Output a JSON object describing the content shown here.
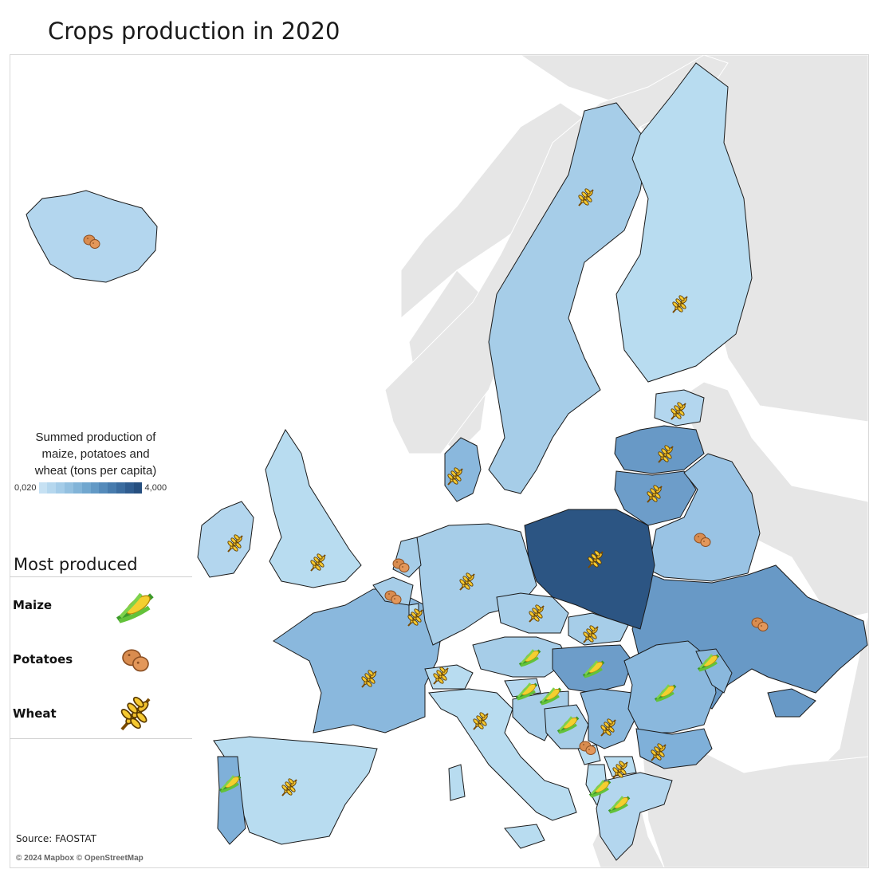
{
  "title": "Crops production in 2020",
  "legend": {
    "title_line1": "Summed production of",
    "title_line2": "maize, potatoes and",
    "title_line3": "wheat (tons per capita)",
    "min_label": "0,020",
    "max_label": "4,000",
    "ramp": [
      "#c6e1f3",
      "#b5d7ee",
      "#a4cce8",
      "#93c0e0",
      "#82b4d8",
      "#71a7cf",
      "#6299c5",
      "#548aba",
      "#477bad",
      "#3b6c9f",
      "#2f5c8f",
      "#264f7f"
    ]
  },
  "most_produced": {
    "heading": "Most produced",
    "items": [
      {
        "label": "Maize",
        "icon": "maize-icon"
      },
      {
        "label": "Potatoes",
        "icon": "potato-icon"
      },
      {
        "label": "Wheat",
        "icon": "wheat-icon"
      }
    ]
  },
  "source": "Source: FAOSTAT",
  "attribution": "© 2024 Mapbox © OpenStreetMap",
  "colors": {
    "background_land": "#e6e6e6",
    "outline": "#1a1a1a",
    "low": "#c6e1f3",
    "mid": "#93c0e0",
    "high": "#2c5583"
  },
  "countries": [
    {
      "name": "Iceland",
      "crop": "potatoes",
      "level": "low"
    },
    {
      "name": "Norway",
      "crop": "none",
      "level": "none"
    },
    {
      "name": "Sweden",
      "crop": "wheat",
      "level": "low-mid"
    },
    {
      "name": "Finland",
      "crop": "wheat",
      "level": "low"
    },
    {
      "name": "Estonia",
      "crop": "wheat",
      "level": "low"
    },
    {
      "name": "Latvia",
      "crop": "wheat",
      "level": "mid-high"
    },
    {
      "name": "Lithuania",
      "crop": "wheat",
      "level": "mid-high"
    },
    {
      "name": "Belarus",
      "crop": "potatoes",
      "level": "low-mid"
    },
    {
      "name": "Ukraine",
      "crop": "potatoes",
      "level": "mid-high"
    },
    {
      "name": "Poland",
      "crop": "wheat",
      "level": "high"
    },
    {
      "name": "Denmark",
      "crop": "wheat",
      "level": "mid"
    },
    {
      "name": "United Kingdom",
      "crop": "wheat",
      "level": "low"
    },
    {
      "name": "Ireland",
      "crop": "wheat",
      "level": "low"
    },
    {
      "name": "France",
      "crop": "wheat",
      "level": "mid"
    },
    {
      "name": "Spain",
      "crop": "wheat",
      "level": "low"
    },
    {
      "name": "Portugal",
      "crop": "maize",
      "level": "mid"
    },
    {
      "name": "Germany",
      "crop": "wheat",
      "level": "low-mid"
    },
    {
      "name": "Netherlands",
      "crop": "potatoes",
      "level": "low-mid"
    },
    {
      "name": "Belgium",
      "crop": "potatoes",
      "level": "low-mid"
    },
    {
      "name": "Luxembourg",
      "crop": "wheat",
      "level": "low"
    },
    {
      "name": "Switzerland",
      "crop": "wheat",
      "level": "low"
    },
    {
      "name": "Italy",
      "crop": "wheat",
      "level": "low"
    },
    {
      "name": "Austria",
      "crop": "maize",
      "level": "low-mid"
    },
    {
      "name": "Czechia",
      "crop": "wheat",
      "level": "low-mid"
    },
    {
      "name": "Slovakia",
      "crop": "wheat",
      "level": "low-mid"
    },
    {
      "name": "Hungary",
      "crop": "maize",
      "level": "mid-high"
    },
    {
      "name": "Slovenia",
      "crop": "maize",
      "level": "low"
    },
    {
      "name": "Croatia",
      "crop": "maize",
      "level": "low-mid"
    },
    {
      "name": "Bosnia and Herzegovina",
      "crop": "maize",
      "level": "low-mid"
    },
    {
      "name": "Serbia",
      "crop": "wheat",
      "level": "mid"
    },
    {
      "name": "Romania",
      "crop": "maize",
      "level": "mid"
    },
    {
      "name": "Moldova",
      "crop": "maize",
      "level": "mid"
    },
    {
      "name": "Bulgaria",
      "crop": "wheat",
      "level": "mid-high"
    },
    {
      "name": "Montenegro",
      "crop": "potatoes",
      "level": "low"
    },
    {
      "name": "North Macedonia",
      "crop": "wheat",
      "level": "low"
    },
    {
      "name": "Albania",
      "crop": "maize",
      "level": "low"
    },
    {
      "name": "Greece",
      "crop": "maize",
      "level": "low"
    }
  ]
}
